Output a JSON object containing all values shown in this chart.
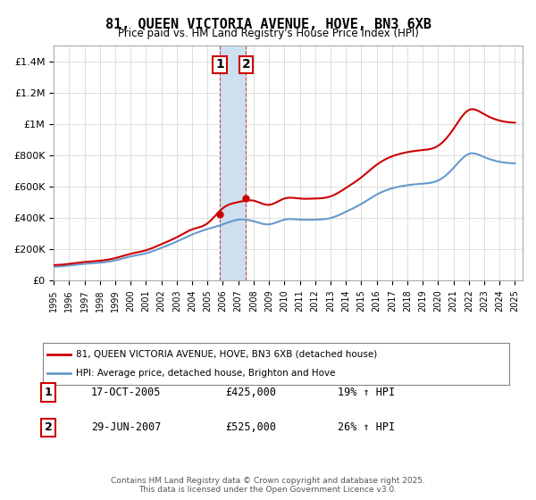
{
  "title": "81, QUEEN VICTORIA AVENUE, HOVE, BN3 6XB",
  "subtitle": "Price paid vs. HM Land Registry's House Price Index (HPI)",
  "ylabel_ticks": [
    "£0",
    "£200K",
    "£400K",
    "£600K",
    "£800K",
    "£1M",
    "£1.2M",
    "£1.4M"
  ],
  "ytick_values": [
    0,
    200000,
    400000,
    600000,
    800000,
    1000000,
    1200000,
    1400000
  ],
  "ylim": [
    0,
    1500000
  ],
  "legend_line1": "81, QUEEN VICTORIA AVENUE, HOVE, BN3 6XB (detached house)",
  "legend_line2": "HPI: Average price, detached house, Brighton and Hove",
  "purchase1_date": "17-OCT-2005",
  "purchase1_price": "£425,000",
  "purchase1_hpi": "19% ↑ HPI",
  "purchase2_date": "29-JUN-2007",
  "purchase2_price": "£525,000",
  "purchase2_hpi": "26% ↑ HPI",
  "footer": "Contains HM Land Registry data © Crown copyright and database right 2025.\nThis data is licensed under the Open Government Licence v3.0.",
  "highlight_x1": 2005.8,
  "highlight_x2": 2007.5,
  "line_color_red": "#cc0000",
  "line_color_blue": "#6699cc",
  "highlight_color": "#cce0f0",
  "background_color": "#ffffff",
  "grid_color": "#dddddd",
  "purchase_marker_color": "#cc0000",
  "xmin": 1995,
  "xmax": 2025.5
}
